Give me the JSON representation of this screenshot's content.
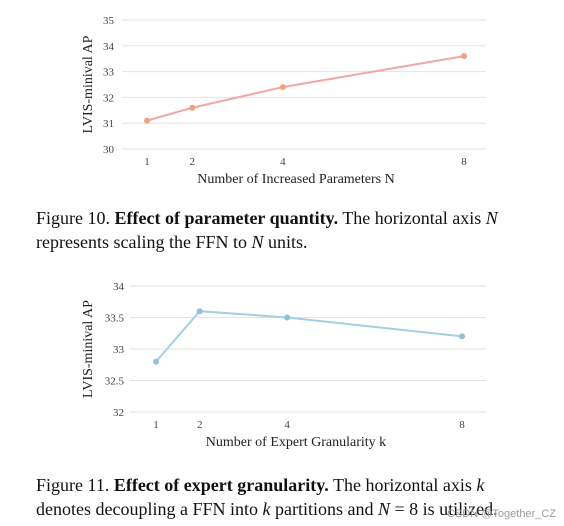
{
  "chart_data": [
    {
      "type": "line",
      "x": [
        1,
        2,
        4,
        8
      ],
      "xticks": [
        "1",
        "2",
        "4",
        "8"
      ],
      "series": [
        {
          "values": [
            31.1,
            31.6,
            32.4,
            33.6
          ],
          "color": "#f4a6a6",
          "marker_color": "#f3a07c"
        }
      ],
      "ylabel": "LVIS-minival AP",
      "xlabel": "Number of Increased Parameters N",
      "ylim": [
        30,
        35
      ],
      "yticks": [
        "30",
        "31",
        "32",
        "33",
        "34",
        "35"
      ],
      "grid": true
    },
    {
      "type": "line",
      "x": [
        1,
        2,
        4,
        8
      ],
      "xticks": [
        "1",
        "2",
        "4",
        "8"
      ],
      "series": [
        {
          "values": [
            32.8,
            33.6,
            33.5,
            33.2
          ],
          "color": "#a3cfe3",
          "marker_color": "#8fc1da"
        }
      ],
      "ylabel": "LVIS-minival AP",
      "xlabel": "Number of Expert Granularity k",
      "ylim": [
        32,
        34
      ],
      "yticks": [
        "32",
        "32.5",
        "33",
        "33.5",
        "34"
      ],
      "grid": true
    }
  ],
  "captions": {
    "fig10": {
      "label": "Figure 10.",
      "title": "Effect of parameter quantity.",
      "text_1": "The horizontal axis",
      "var_1": "N",
      "text_2": "represents scaling the FFN to",
      "var_2": "N",
      "text_3": "units."
    },
    "fig11": {
      "label": "Figure 11.",
      "title": "Effect of expert granularity.",
      "text_1": "The horizontal axis",
      "var_1": "k",
      "text_2": "denotes decoupling a FFN into",
      "var_2": "k",
      "text_3": "partitions and",
      "var_3": "N",
      "text_4": "= 8 is utilized."
    }
  },
  "watermark": "CSDN @Together_CZ"
}
